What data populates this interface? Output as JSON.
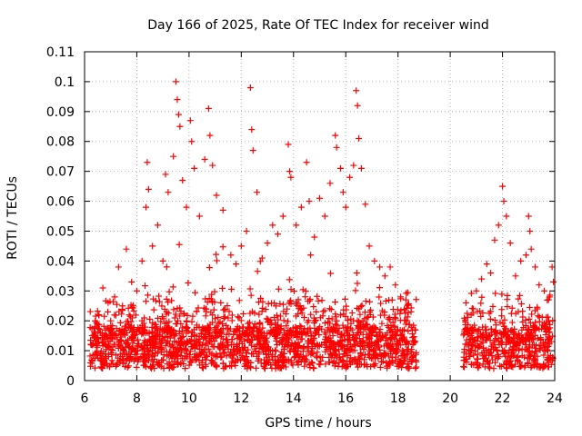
{
  "chart_data": {
    "type": "scatter",
    "title": "Day 166 of 2025, Rate Of TEC Index for receiver wind",
    "xlabel": "GPS time / hours",
    "ylabel": "ROTI / TECUs",
    "xlim": [
      6,
      24
    ],
    "ylim": [
      0,
      0.11
    ],
    "xticks": [
      6,
      8,
      10,
      12,
      14,
      16,
      18,
      20,
      22,
      24
    ],
    "yticks": [
      0,
      0.01,
      0.02,
      0.03,
      0.04,
      0.05,
      0.06,
      0.07,
      0.08,
      0.09,
      0.1,
      0.11
    ],
    "xtick_labels": [
      "6",
      "8",
      "10",
      "12",
      "14",
      "16",
      "18",
      "20",
      "22",
      "24"
    ],
    "ytick_labels": [
      "0",
      "0.01",
      "0.02",
      "0.03",
      "0.04",
      "0.05",
      "0.06",
      "0.07",
      "0.08",
      "0.09",
      "0.1",
      "0.11"
    ],
    "grid": true,
    "marker": "+",
    "color": "#ff0000",
    "data_gap_hours": [
      18.7,
      20.5
    ],
    "series": [
      {
        "name": "ROTI",
        "points": [
          [
            6.25,
            0.012
          ],
          [
            6.4,
            0.018
          ],
          [
            6.55,
            0.022
          ],
          [
            6.7,
            0.031
          ],
          [
            6.85,
            0.015
          ],
          [
            7.0,
            0.02
          ],
          [
            7.15,
            0.028
          ],
          [
            7.3,
            0.038
          ],
          [
            7.45,
            0.025
          ],
          [
            7.6,
            0.044
          ],
          [
            7.8,
            0.033
          ],
          [
            8.0,
            0.03
          ],
          [
            8.2,
            0.04
          ],
          [
            8.35,
            0.058
          ],
          [
            8.4,
            0.073
          ],
          [
            8.45,
            0.064
          ],
          [
            8.6,
            0.045
          ],
          [
            8.8,
            0.052
          ],
          [
            9.0,
            0.04
          ],
          [
            9.1,
            0.069
          ],
          [
            9.2,
            0.063
          ],
          [
            9.4,
            0.075
          ],
          [
            9.5,
            0.1
          ],
          [
            9.55,
            0.094
          ],
          [
            9.6,
            0.089
          ],
          [
            9.65,
            0.085
          ],
          [
            9.75,
            0.067
          ],
          [
            9.9,
            0.058
          ],
          [
            10.05,
            0.087
          ],
          [
            10.1,
            0.08
          ],
          [
            10.2,
            0.071
          ],
          [
            10.4,
            0.055
          ],
          [
            10.6,
            0.074
          ],
          [
            10.75,
            0.091
          ],
          [
            10.8,
            0.082
          ],
          [
            10.9,
            0.072
          ],
          [
            11.05,
            0.062
          ],
          [
            11.3,
            0.057
          ],
          [
            11.6,
            0.042
          ],
          [
            11.8,
            0.039
          ],
          [
            12.0,
            0.045
          ],
          [
            12.2,
            0.05
          ],
          [
            12.35,
            0.098
          ],
          [
            12.4,
            0.084
          ],
          [
            12.45,
            0.077
          ],
          [
            12.6,
            0.063
          ],
          [
            12.8,
            0.041
          ],
          [
            13.0,
            0.046
          ],
          [
            13.2,
            0.052
          ],
          [
            13.4,
            0.049
          ],
          [
            13.6,
            0.055
          ],
          [
            13.8,
            0.079
          ],
          [
            13.85,
            0.07
          ],
          [
            13.9,
            0.068
          ],
          [
            14.1,
            0.052
          ],
          [
            14.3,
            0.058
          ],
          [
            14.5,
            0.073
          ],
          [
            14.6,
            0.06
          ],
          [
            14.8,
            0.048
          ],
          [
            15.0,
            0.061
          ],
          [
            15.2,
            0.055
          ],
          [
            15.4,
            0.066
          ],
          [
            15.6,
            0.082
          ],
          [
            15.65,
            0.078
          ],
          [
            15.8,
            0.071
          ],
          [
            15.9,
            0.063
          ],
          [
            16.0,
            0.058
          ],
          [
            16.15,
            0.068
          ],
          [
            16.3,
            0.072
          ],
          [
            16.4,
            0.097
          ],
          [
            16.45,
            0.092
          ],
          [
            16.5,
            0.081
          ],
          [
            16.6,
            0.071
          ],
          [
            16.75,
            0.059
          ],
          [
            16.9,
            0.045
          ],
          [
            17.1,
            0.04
          ],
          [
            17.3,
            0.038
          ],
          [
            17.5,
            0.035
          ],
          [
            17.7,
            0.038
          ],
          [
            17.9,
            0.032
          ],
          [
            18.1,
            0.028
          ],
          [
            18.3,
            0.027
          ],
          [
            18.5,
            0.023
          ],
          [
            18.65,
            0.017
          ],
          [
            20.55,
            0.017
          ],
          [
            20.6,
            0.026
          ],
          [
            20.8,
            0.022
          ],
          [
            21.0,
            0.03
          ],
          [
            21.2,
            0.034
          ],
          [
            21.4,
            0.039
          ],
          [
            21.55,
            0.036
          ],
          [
            21.7,
            0.047
          ],
          [
            21.85,
            0.052
          ],
          [
            22.0,
            0.065
          ],
          [
            22.05,
            0.06
          ],
          [
            22.15,
            0.055
          ],
          [
            22.3,
            0.046
          ],
          [
            22.5,
            0.035
          ],
          [
            22.7,
            0.04
          ],
          [
            22.9,
            0.042
          ],
          [
            23.0,
            0.055
          ],
          [
            23.05,
            0.05
          ],
          [
            23.1,
            0.044
          ],
          [
            23.25,
            0.038
          ],
          [
            23.4,
            0.032
          ],
          [
            23.6,
            0.03
          ],
          [
            23.8,
            0.028
          ],
          [
            23.9,
            0.038
          ],
          [
            23.95,
            0.033
          ]
        ]
      }
    ]
  }
}
